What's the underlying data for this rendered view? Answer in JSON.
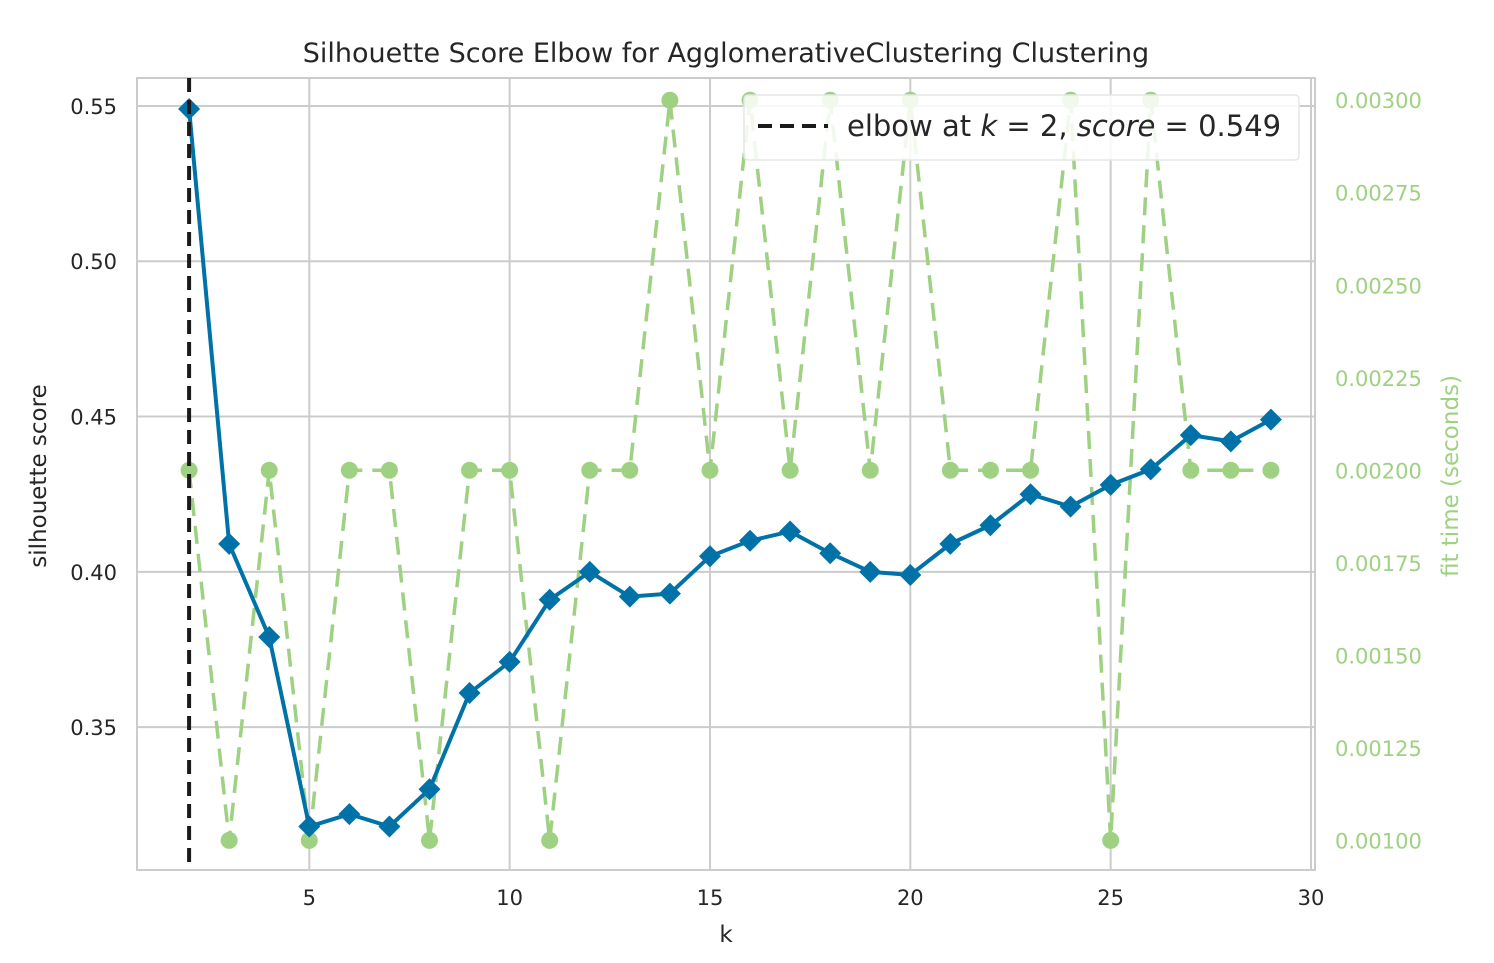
{
  "chart_data": {
    "type": "line",
    "title": "Silhouette Score Elbow for AgglomerativeClustering Clustering",
    "xlabel": "k",
    "ylabel": "silhouette score",
    "y2label": "fit time (seconds)",
    "xlim": [
      0.7,
      30.1
    ],
    "ylim": [
      0.304,
      0.559
    ],
    "y2lim": [
      0.00092,
      0.00306
    ],
    "xticks": [
      5,
      10,
      15,
      20,
      25,
      30
    ],
    "yticks": [
      0.35,
      0.4,
      0.45,
      0.5,
      0.55
    ],
    "yticklabels": [
      "0.35",
      "0.40",
      "0.45",
      "0.50",
      "0.55"
    ],
    "y2ticks": [
      0.001,
      0.00125,
      0.0015,
      0.00175,
      0.002,
      0.00225,
      0.0025,
      0.00275,
      0.003
    ],
    "y2ticklabels": [
      "0.00100",
      "0.00125",
      "0.00150",
      "0.00175",
      "0.00200",
      "0.00225",
      "0.00250",
      "0.00275",
      "0.00300"
    ],
    "grid": true,
    "legend_placement": "top-right",
    "legend_label_prefix": "elbow at ",
    "legend_k_text": "k",
    "legend_eq1": " = 2, ",
    "legend_score_text": "score",
    "legend_eq2": " = 0.549",
    "elbow_k": 2,
    "colors": {
      "score": "#0072a7",
      "fit_time": "#9ed181",
      "elbow": "#1a1a1a",
      "grid": "#cccccc",
      "frame": "#cccccc"
    },
    "series": [
      {
        "name": "silhouette score",
        "axis": "left",
        "x": [
          2,
          3,
          4,
          5,
          6,
          7,
          8,
          9,
          10,
          11,
          12,
          13,
          14,
          15,
          16,
          17,
          18,
          19,
          20,
          21,
          22,
          23,
          24,
          25,
          26,
          27,
          28,
          29
        ],
        "values": [
          0.549,
          0.409,
          0.379,
          0.318,
          0.322,
          0.318,
          0.33,
          0.361,
          0.371,
          0.391,
          0.4,
          0.392,
          0.393,
          0.405,
          0.41,
          0.413,
          0.406,
          0.4,
          0.399,
          0.409,
          0.415,
          0.425,
          0.421,
          0.428,
          0.433,
          0.444,
          0.442,
          0.449
        ]
      },
      {
        "name": "fit time (seconds)",
        "axis": "right",
        "x": [
          2,
          3,
          4,
          5,
          6,
          7,
          8,
          9,
          10,
          11,
          12,
          13,
          14,
          15,
          16,
          17,
          18,
          19,
          20,
          21,
          22,
          23,
          24,
          25,
          26,
          27,
          28,
          29
        ],
        "values": [
          0.002,
          0.001,
          0.002,
          0.001,
          0.002,
          0.002,
          0.001,
          0.002,
          0.002,
          0.001,
          0.002,
          0.002,
          0.003,
          0.002,
          0.003,
          0.002,
          0.003,
          0.002,
          0.003,
          0.002,
          0.002,
          0.002,
          0.003,
          0.001,
          0.003,
          0.002,
          0.002,
          0.002
        ]
      }
    ]
  }
}
